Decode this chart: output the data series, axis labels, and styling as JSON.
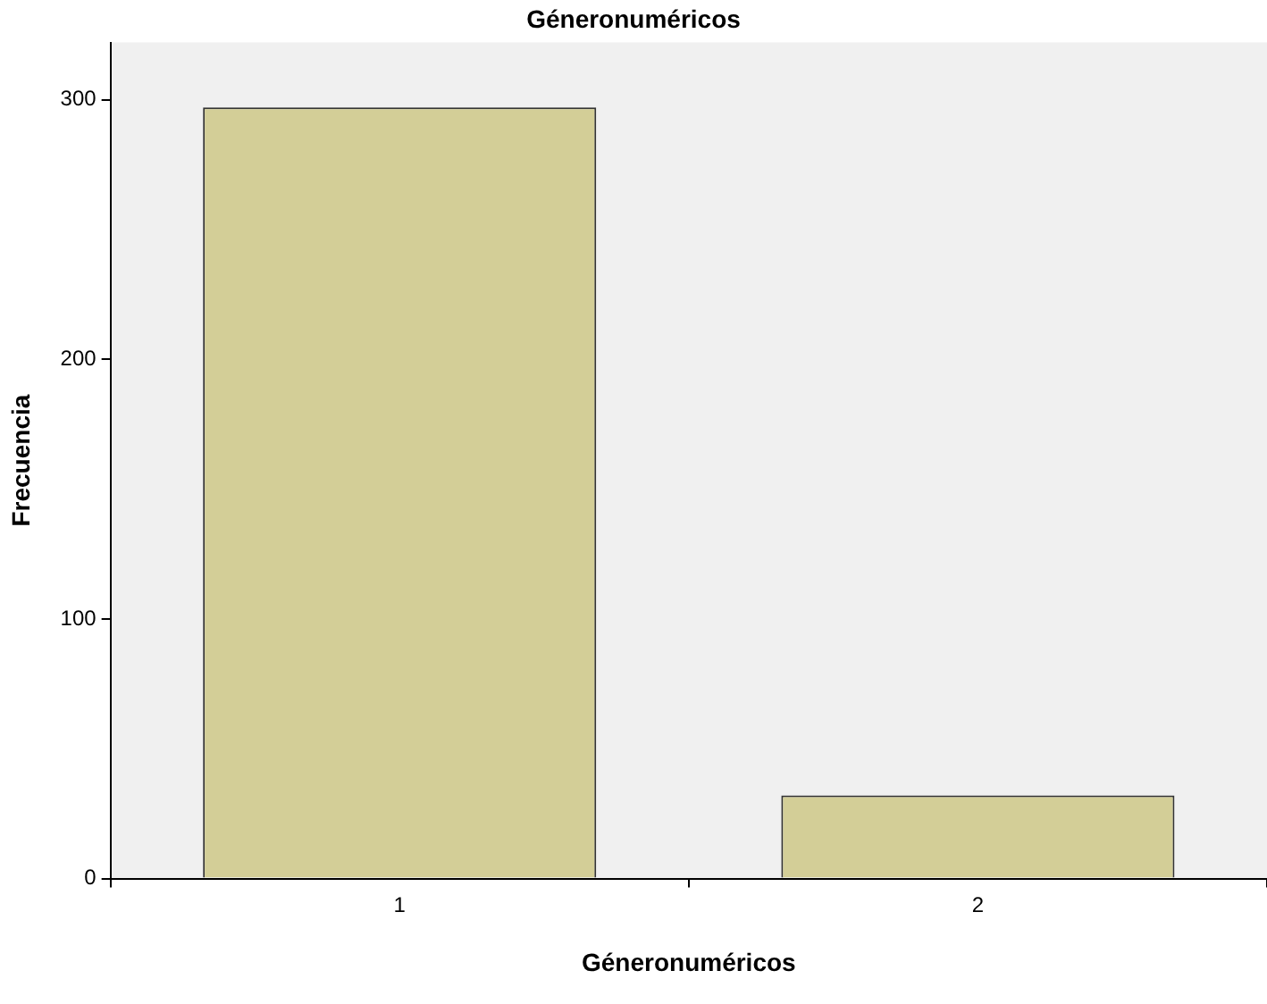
{
  "chart_data": {
    "type": "bar",
    "title": "Géneronuméricos",
    "xlabel": "Géneronuméricos",
    "ylabel": "Frecuencia",
    "categories": [
      "1",
      "2"
    ],
    "values": [
      297,
      32
    ],
    "color": "#d3ce97",
    "ylim": [
      0,
      322
    ],
    "yticks": [
      0,
      100,
      200,
      300
    ],
    "grid": false,
    "legend": false
  }
}
